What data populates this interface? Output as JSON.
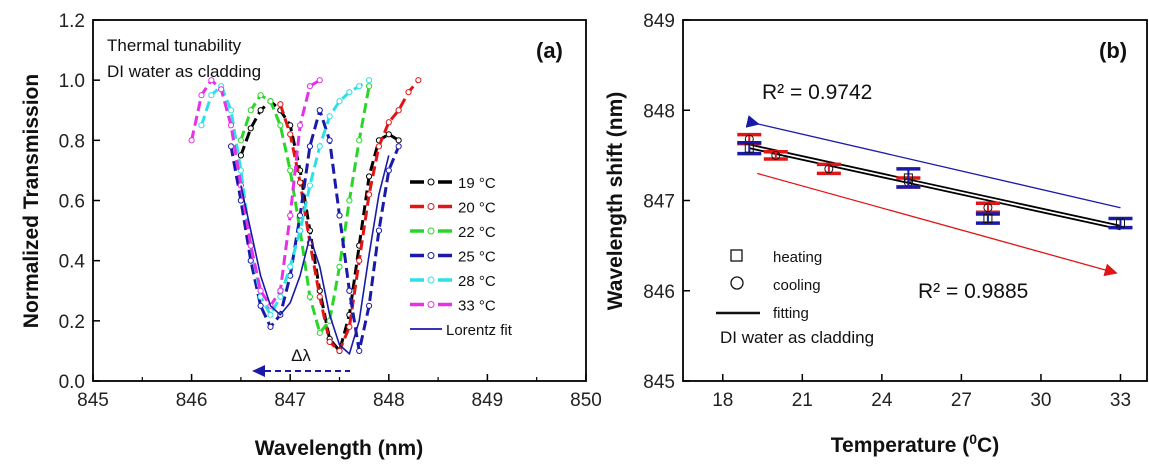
{
  "chart_data": [
    {
      "type": "line",
      "panel_label": "(a)",
      "xlabel": "Wavelength (nm)",
      "ylabel": "Normalized Transmission",
      "xlim": [
        845,
        850
      ],
      "ylim": [
        0.0,
        1.2
      ],
      "xticks": [
        "845",
        "846",
        "847",
        "848",
        "849",
        "850"
      ],
      "yticks": [
        "0.0",
        "0.2",
        "0.4",
        "0.6",
        "0.8",
        "1.0",
        "1.2"
      ],
      "annotations": [
        "Thermal tunability",
        "DI water as cladding",
        "Δλ"
      ],
      "legend_position": "right",
      "series": [
        {
          "name": "19 °C",
          "color": "#000000",
          "x": [
            846.5,
            846.6,
            846.7,
            846.8,
            846.9,
            847.0,
            847.1,
            847.2,
            847.3,
            847.4,
            847.5,
            847.6,
            847.7,
            847.8,
            847.9,
            848.0,
            848.1
          ],
          "y": [
            0.75,
            0.84,
            0.9,
            0.93,
            0.9,
            0.85,
            0.7,
            0.5,
            0.3,
            0.14,
            0.1,
            0.22,
            0.45,
            0.68,
            0.8,
            0.82,
            0.8
          ]
        },
        {
          "name": "20 °C",
          "color": "#e01515",
          "x": [
            846.9,
            847.0,
            847.1,
            847.2,
            847.3,
            847.4,
            847.5,
            847.6,
            847.7,
            847.8,
            847.9,
            848.0,
            848.1,
            848.2,
            848.3
          ],
          "y": [
            0.92,
            0.82,
            0.66,
            0.46,
            0.28,
            0.13,
            0.1,
            0.18,
            0.4,
            0.62,
            0.78,
            0.86,
            0.9,
            0.96,
            1.0
          ]
        },
        {
          "name": "22 °C",
          "color": "#2bd62b",
          "x": [
            846.5,
            846.6,
            846.7,
            846.8,
            846.9,
            847.0,
            847.1,
            847.2,
            847.3,
            847.4,
            847.5,
            847.6,
            847.7,
            847.8
          ],
          "y": [
            0.8,
            0.9,
            0.95,
            0.93,
            0.85,
            0.7,
            0.5,
            0.28,
            0.16,
            0.2,
            0.38,
            0.6,
            0.8,
            0.98
          ]
        },
        {
          "name": "25 °C",
          "color": "#1a1aa8",
          "x": [
            846.4,
            846.5,
            846.6,
            846.7,
            846.8,
            846.9,
            847.0,
            847.1,
            847.2,
            847.3,
            847.4,
            847.5,
            847.6,
            847.7,
            847.8,
            847.9,
            848.0,
            848.1
          ],
          "y": [
            0.78,
            0.6,
            0.4,
            0.25,
            0.18,
            0.22,
            0.35,
            0.55,
            0.78,
            0.9,
            0.8,
            0.55,
            0.3,
            0.1,
            0.25,
            0.5,
            0.7,
            0.78
          ]
        },
        {
          "name": "28 °C",
          "color": "#2ee0e6",
          "x": [
            846.1,
            846.2,
            846.3,
            846.4,
            846.5,
            846.6,
            846.7,
            846.8,
            846.9,
            847.0,
            847.1,
            847.2,
            847.3,
            847.4,
            847.5,
            847.6,
            847.7,
            847.8
          ],
          "y": [
            0.85,
            0.95,
            0.98,
            0.9,
            0.7,
            0.45,
            0.28,
            0.22,
            0.28,
            0.38,
            0.5,
            0.65,
            0.78,
            0.88,
            0.93,
            0.96,
            0.98,
            1.0
          ]
        },
        {
          "name": "33 °C",
          "color": "#e631e6",
          "x": [
            846.0,
            846.1,
            846.2,
            846.3,
            846.4,
            846.5,
            846.6,
            846.7,
            846.8,
            846.9,
            847.0,
            847.1,
            847.2,
            847.3
          ],
          "y": [
            0.8,
            0.95,
            1.0,
            0.97,
            0.85,
            0.65,
            0.45,
            0.3,
            0.25,
            0.3,
            0.55,
            0.85,
            0.98,
            1.0
          ]
        },
        {
          "name": "Lorentz fit",
          "color": "#1a1aa8",
          "x": [
            846.5,
            846.6,
            846.7,
            846.8,
            846.9,
            847.0,
            847.1,
            847.2,
            847.3,
            847.4,
            847.5,
            847.6,
            847.7,
            847.8,
            847.9,
            848.0
          ],
          "y": [
            0.65,
            0.5,
            0.35,
            0.25,
            0.22,
            0.26,
            0.35,
            0.48,
            0.38,
            0.22,
            0.12,
            0.09,
            0.2,
            0.42,
            0.62,
            0.75
          ]
        }
      ]
    },
    {
      "type": "scatter",
      "panel_label": "(b)",
      "xlabel_main": "Temperature (",
      "xlabel_sup": "0",
      "xlabel_end": "C)",
      "ylabel": "Wavelength shift (nm)",
      "xlim": [
        16.5,
        34
      ],
      "ylim": [
        845,
        849
      ],
      "xticks": [
        "18",
        "21",
        "24",
        "27",
        "30",
        "33"
      ],
      "yticks": [
        "845",
        "846",
        "847",
        "848",
        "849"
      ],
      "annotations": [
        "R² =  0.9742",
        "R² = 0.9885",
        "DI water as cladding"
      ],
      "legend": [
        "heating",
        "cooling",
        "fitting"
      ],
      "series": [
        {
          "name": "heating",
          "color": "#1a1aa8",
          "x": [
            19,
            25,
            28,
            33
          ],
          "y": [
            847.58,
            847.25,
            846.8,
            846.75
          ],
          "err": [
            0.06,
            0.1,
            0.05,
            0.05
          ]
        },
        {
          "name": "cooling",
          "color": "#e01515",
          "x": [
            19,
            20,
            22,
            25,
            28
          ],
          "y": [
            847.68,
            847.5,
            847.35,
            847.2,
            846.92
          ],
          "err": [
            0.05,
            0.04,
            0.05,
            0.05,
            0.05
          ]
        }
      ],
      "fit_lines": [
        {
          "x": [
            19,
            33
          ],
          "y": [
            847.62,
            846.72
          ]
        },
        {
          "x": [
            19,
            33
          ],
          "y": [
            847.58,
            846.68
          ]
        }
      ],
      "trend_arrows": [
        {
          "color": "#1a1aa8",
          "x": [
            19.3,
            33
          ],
          "y": [
            847.85,
            846.92
          ]
        },
        {
          "color": "#e01515",
          "x": [
            19.3,
            32.8
          ],
          "y": [
            847.3,
            846.2
          ]
        }
      ]
    }
  ]
}
